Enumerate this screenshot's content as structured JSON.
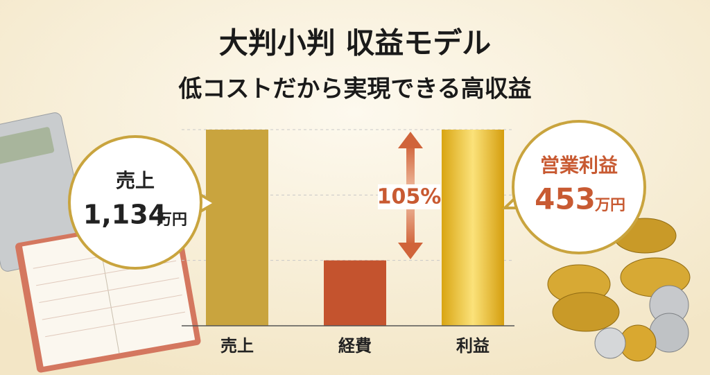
{
  "chart_data": {
    "type": "bar",
    "title": "大判小判 収益モデル",
    "subtitle": "低コストだから実現できる高収益",
    "categories": [
      "売上",
      "経費",
      "利益"
    ],
    "values": [
      3,
      1,
      3
    ],
    "colors": [
      "#c9a43e",
      "#c4532e",
      "#e6b420"
    ],
    "ylim": [
      0,
      3
    ],
    "yticks": [
      0,
      1,
      2,
      3
    ],
    "tick_labels": false,
    "grid": true,
    "annotations": {
      "sales": {
        "label": "売上",
        "amount": "1,134",
        "unit": "万円"
      },
      "profit": {
        "label": "営業利益",
        "amount": "453",
        "unit": "万円"
      },
      "ratio": "105%"
    }
  }
}
